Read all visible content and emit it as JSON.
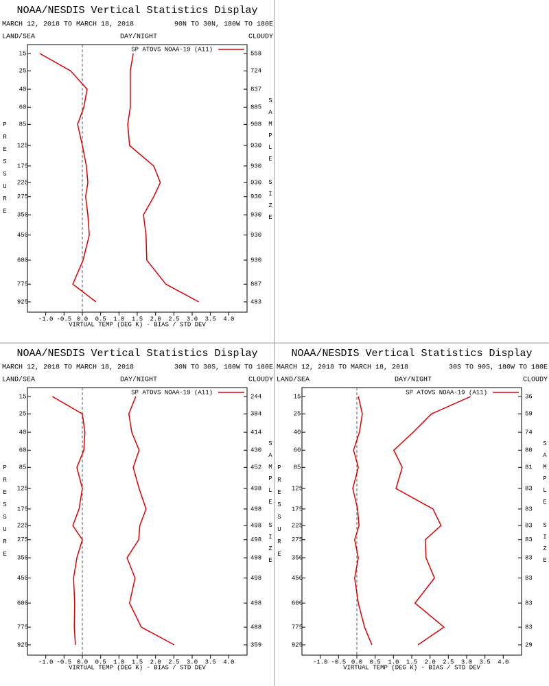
{
  "chart_data": [
    {
      "type": "line",
      "title": "NOAA/NESDIS Vertical Statistics Display",
      "subtitle": "MARCH 12, 2018 TO MARCH 18, 2018",
      "region": "90N TO 30N, 180W TO 180E",
      "left_header": "LAND/SEA",
      "center_header": "DAY/NIGHT",
      "right_header": "CLOUDY",
      "ylabel": "PRESSURE",
      "y2label": "SAMPLE SIZE",
      "xlabel": "VIRTUAL TEMP (DEG K) - BIAS / STD DEV",
      "categories": [
        15,
        25,
        40,
        60,
        85,
        125,
        175,
        225,
        275,
        350,
        450,
        600,
        775,
        925
      ],
      "sample_size": [
        558,
        724,
        837,
        885,
        908,
        930,
        930,
        930,
        930,
        930,
        930,
        930,
        887,
        483
      ],
      "series": [
        {
          "name": "SP ATOVS NOAA-19 (A11)",
          "color": "#dd0000",
          "values": [
            -1.16,
            -0.32,
            0.13,
            0.04,
            -0.13,
            0,
            0.11,
            0.15,
            0.09,
            0.15,
            0.19,
            0.02,
            -0.26,
            0.37
          ]
        },
        {
          "color": "#dd0000",
          "values": [
            1.39,
            1.31,
            1.31,
            1.31,
            1.24,
            1.29,
            1.95,
            2.13,
            1.95,
            1.67,
            1.74,
            1.76,
            2.28,
            3.18
          ]
        }
      ],
      "xlim": [
        -1.5,
        4.5
      ],
      "xticks": [
        {
          "value": -1,
          "label": "-1.0"
        },
        -0.5,
        {
          "value": 0,
          "label": "0.0"
        },
        0.5,
        {
          "value": 1,
          "label": "1.0"
        },
        1.5,
        {
          "value": 2,
          "label": "2.0"
        },
        2.5,
        {
          "value": 3,
          "label": "3.0"
        },
        3.5,
        {
          "value": 4,
          "label": "4.0"
        }
      ]
    },
    {
      "type": "line",
      "title": "NOAA/NESDIS Vertical Statistics Display",
      "subtitle": "MARCH 12, 2018 TO MARCH 18, 2018",
      "region": "30N TO 30S, 180W TO 180E",
      "left_header": "LAND/SEA",
      "center_header": "DAY/NIGHT",
      "right_header": "CLOUDY",
      "ylabel": "PRESSURE",
      "y2label": "SAMPLE SIZE",
      "xlabel": "VIRTUAL TEMP (DEG K) - BIAS / STD DEV",
      "categories": [
        15,
        25,
        40,
        60,
        85,
        125,
        175,
        225,
        275,
        350,
        450,
        600,
        775,
        925
      ],
      "sample_size": [
        244,
        384,
        414,
        430,
        452,
        498,
        498,
        498,
        498,
        498,
        498,
        498,
        488,
        359
      ],
      "series": [
        {
          "name": "SP ATOVS NOAA-19 (A11)",
          "color": "#dd0000",
          "values": [
            -0.82,
            0,
            0.07,
            0.04,
            -0.15,
            0,
            -0.09,
            -0.26,
            0,
            -0.15,
            -0.24,
            -0.21,
            -0.22,
            -0.19
          ]
        },
        {
          "color": "#dd0000",
          "values": [
            1.46,
            1.27,
            1.35,
            1.55,
            1.39,
            1.55,
            1.74,
            1.57,
            1.54,
            1.22,
            1.44,
            1.29,
            1.61,
            2.51
          ]
        }
      ],
      "xlim": [
        -1.5,
        4.5
      ],
      "xticks": [
        {
          "value": -1,
          "label": "-1.0"
        },
        -0.5,
        {
          "value": 0,
          "label": "0.0"
        },
        0.5,
        {
          "value": 1,
          "label": "1.0"
        },
        1.5,
        {
          "value": 2,
          "label": "2.0"
        },
        2.5,
        {
          "value": 3,
          "label": "3.0"
        },
        3.5,
        {
          "value": 4,
          "label": "4.0"
        }
      ]
    },
    {
      "type": "line",
      "title": "NOAA/NESDIS Vertical Statistics Display",
      "subtitle": "MARCH 12, 2018 TO MARCH 18, 2018",
      "region": "30S TO 90S, 180W TO 180E",
      "left_header": "LAND/SEA",
      "center_header": "DAY/NIGHT",
      "right_header": "CLOUDY",
      "ylabel": "PRESSURE",
      "y2label": "SAMPLE SIZE",
      "xlabel": "VIRTUAL TEMP (DEG K) - BIAS / STD DEV",
      "categories": [
        15,
        25,
        40,
        60,
        85,
        125,
        175,
        225,
        275,
        350,
        450,
        600,
        775,
        925
      ],
      "sample_size": [
        36,
        59,
        74,
        80,
        81,
        83,
        83,
        83,
        83,
        83,
        83,
        83,
        83,
        29
      ],
      "series": [
        {
          "name": "SP ATOVS NOAA-19 (A11)",
          "color": "#dd0000",
          "values": [
            0.04,
            0.15,
            0.07,
            -0.09,
            0.04,
            -0.11,
            0.02,
            0.06,
            -0.06,
            0.04,
            -0.06,
            0.04,
            0.21,
            0.41
          ]
        },
        {
          "color": "#dd0000",
          "values": [
            3.11,
            2.04,
            1.54,
            1.01,
            1.24,
            1.07,
            2.08,
            2.3,
            1.87,
            1.89,
            2.12,
            1.59,
            2.38,
            1.67
          ]
        }
      ],
      "xlim": [
        -1.5,
        4.5
      ],
      "xticks": [
        {
          "value": -1,
          "label": "-1.0"
        },
        -0.5,
        {
          "value": 0,
          "label": "0.0"
        },
        0.5,
        {
          "value": 1,
          "label": "1.0"
        },
        1.5,
        {
          "value": 2,
          "label": "2.0"
        },
        2.5,
        {
          "value": 3,
          "label": "3.0"
        },
        3.5,
        {
          "value": 4,
          "label": "4.0"
        }
      ]
    }
  ]
}
